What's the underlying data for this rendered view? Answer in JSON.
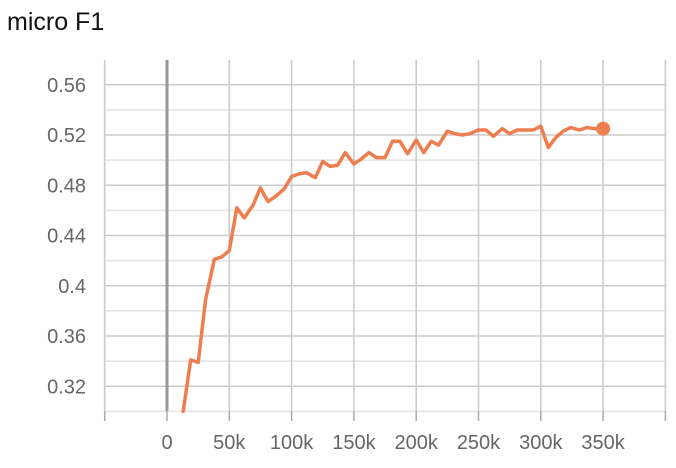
{
  "chart_data": {
    "type": "line",
    "title": "micro F1",
    "xlabel": "",
    "ylabel": "",
    "xlim": [
      -50000,
      400000
    ],
    "ylim": [
      0.3,
      0.57
    ],
    "x_ticks": [
      0,
      50000,
      100000,
      150000,
      200000,
      250000,
      300000,
      350000
    ],
    "x_tick_labels": [
      "0",
      "50k",
      "100k",
      "150k",
      "200k",
      "250k",
      "300k",
      "350k"
    ],
    "y_ticks": [
      0.32,
      0.36,
      0.4,
      0.44,
      0.48,
      0.52,
      0.56
    ],
    "y_tick_labels": [
      "0.32",
      "0.36",
      "0.4",
      "0.44",
      "0.48",
      "0.52",
      "0.56"
    ],
    "grid": true,
    "legend": "none",
    "series": [
      {
        "color": "#ee7d4f",
        "x": [
          13000,
          19000,
          25000,
          31000,
          38000,
          44000,
          50000,
          56000,
          62000,
          69000,
          75000,
          81000,
          87000,
          94000,
          100000,
          106000,
          112000,
          119000,
          125000,
          131000,
          137000,
          143000,
          150000,
          156000,
          162000,
          168000,
          175000,
          181000,
          187000,
          193000,
          200000,
          206000,
          212000,
          218000,
          225000,
          231000,
          237000,
          243000,
          250000,
          256000,
          262000,
          269000,
          275000,
          281000,
          287000,
          294000,
          300000,
          306000,
          312000,
          318000,
          324000,
          331000,
          337000,
          343000,
          350000
        ],
        "y": [
          0.3,
          0.341,
          0.339,
          0.389,
          0.421,
          0.423,
          0.428,
          0.462,
          0.454,
          0.464,
          0.478,
          0.467,
          0.471,
          0.477,
          0.487,
          0.489,
          0.49,
          0.486,
          0.499,
          0.495,
          0.496,
          0.506,
          0.497,
          0.501,
          0.506,
          0.502,
          0.502,
          0.515,
          0.515,
          0.505,
          0.516,
          0.506,
          0.515,
          0.512,
          0.523,
          0.521,
          0.52,
          0.521,
          0.524,
          0.524,
          0.519,
          0.525,
          0.521,
          0.524,
          0.524,
          0.524,
          0.527,
          0.51,
          0.518,
          0.523,
          0.526,
          0.524,
          0.526,
          0.525,
          0.525
        ]
      }
    ]
  }
}
